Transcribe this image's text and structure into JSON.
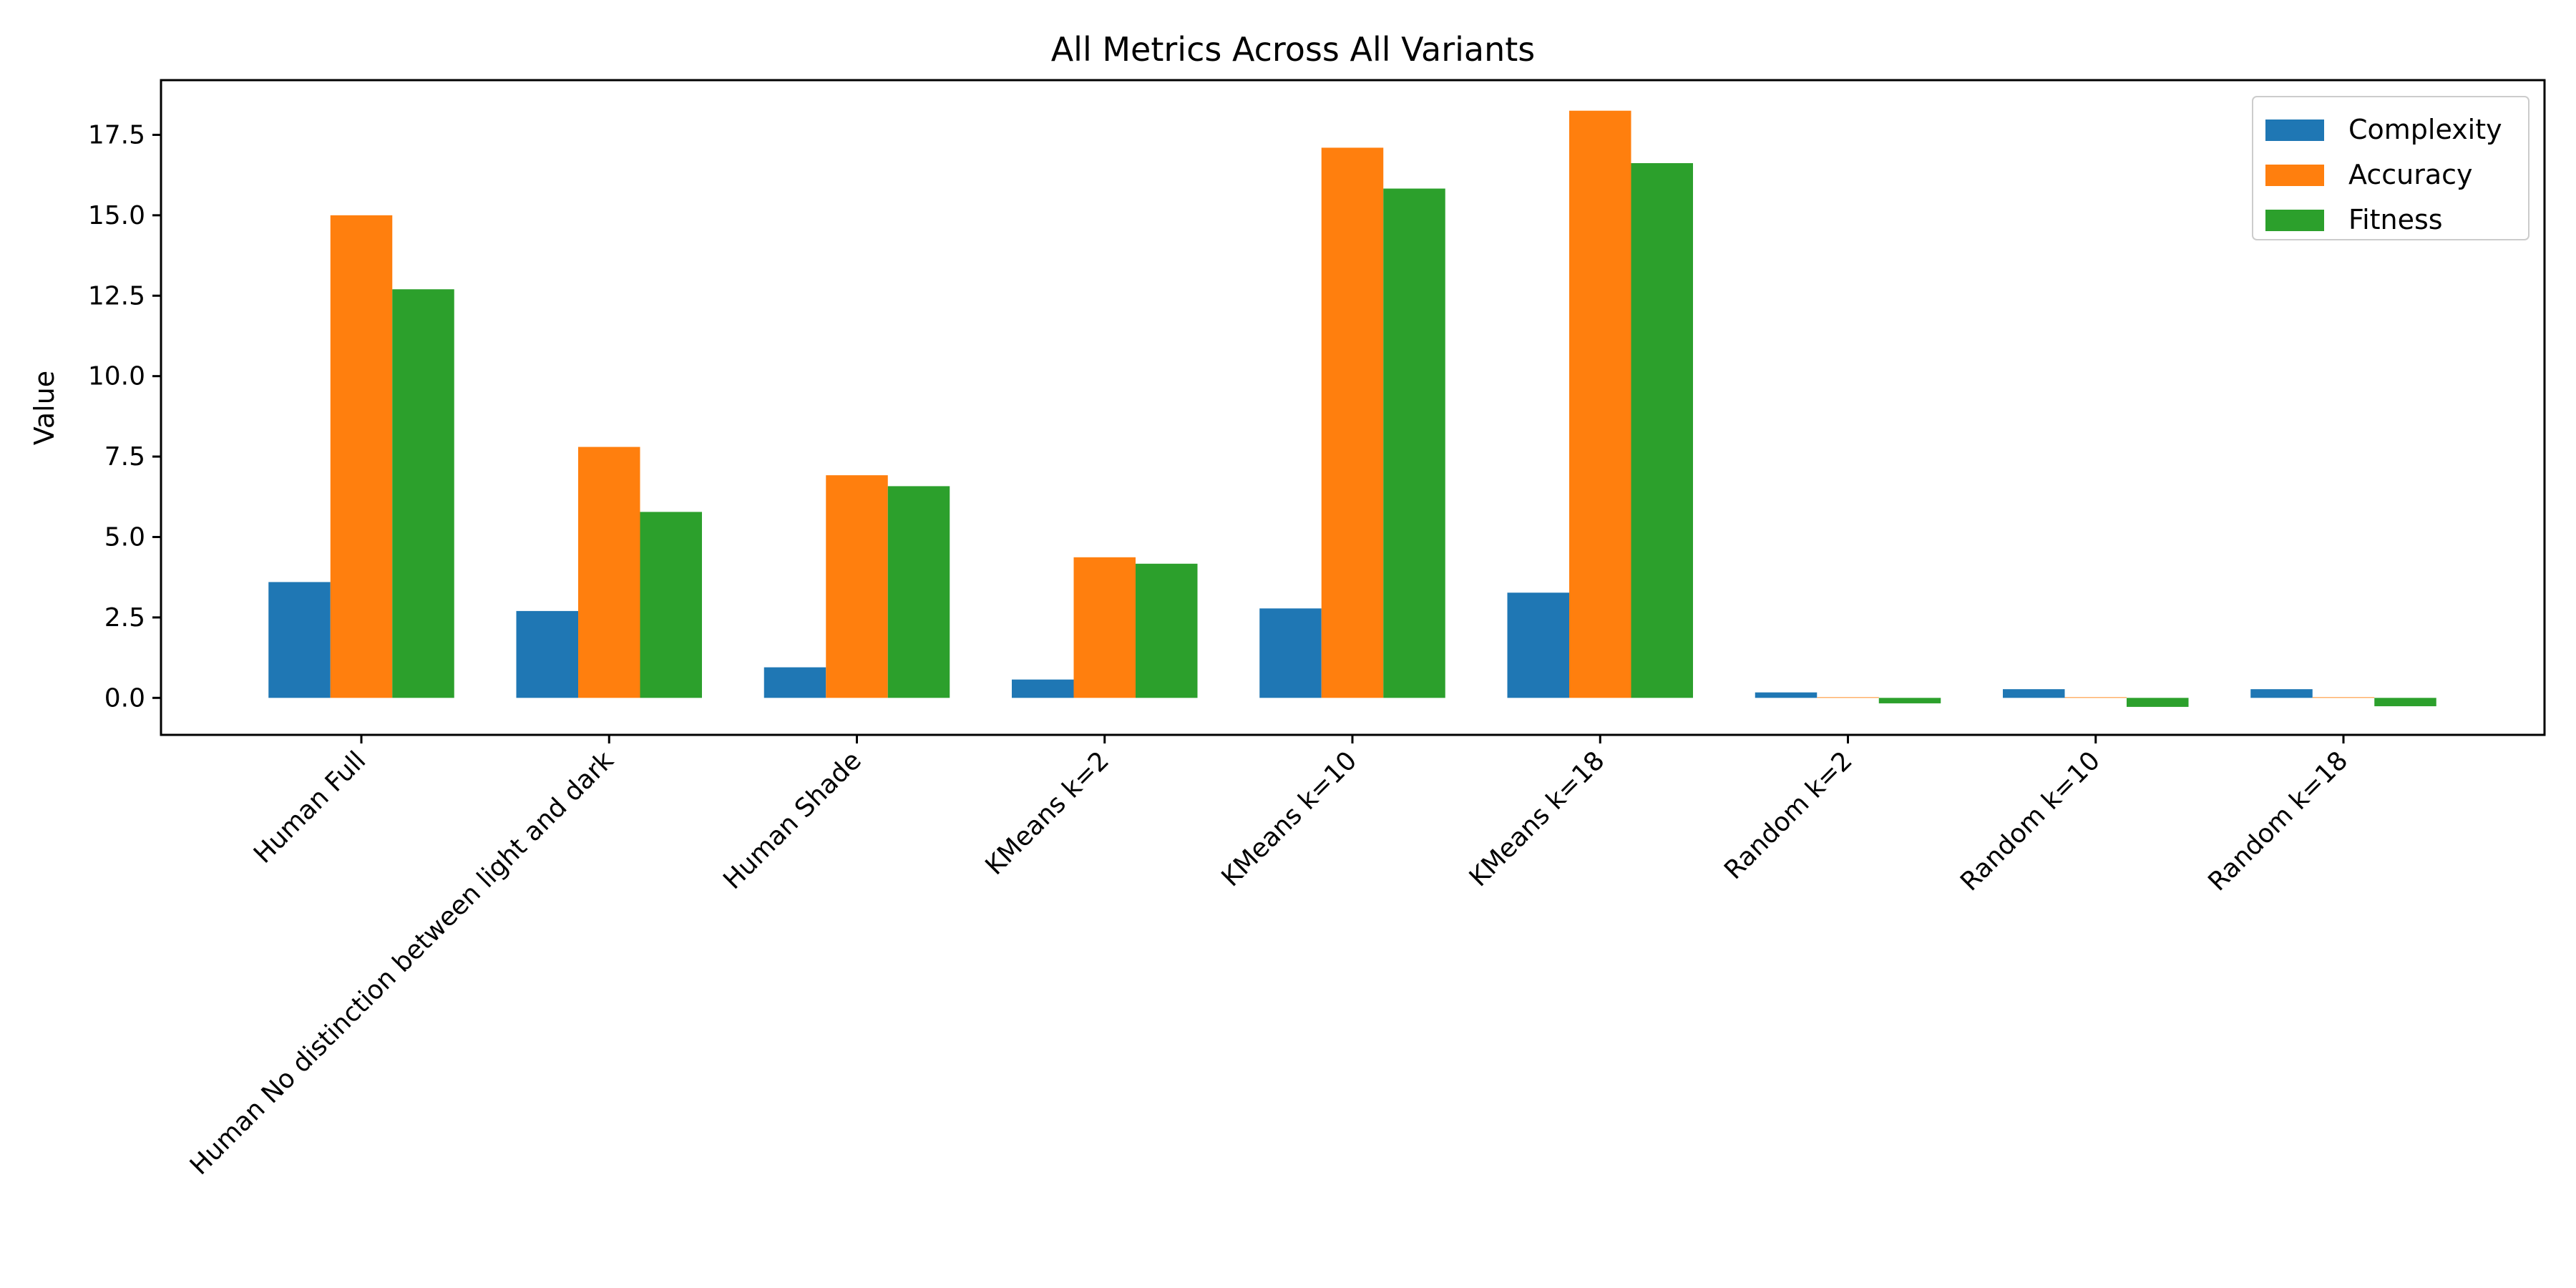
{
  "chart_data": {
    "type": "bar",
    "title": "All Metrics Across All Variants",
    "xlabel": "",
    "ylabel": "Value",
    "categories": [
      "Human Full",
      "Human No distinction between light and dark",
      "Human Shade",
      "KMeans k=2",
      "KMeans k=10",
      "KMeans k=18",
      "Random k=2",
      "Random k=10",
      "Random k=18"
    ],
    "series": [
      {
        "name": "Complexity",
        "color": "#1f77b4",
        "values": [
          3.6,
          2.7,
          0.95,
          0.57,
          2.78,
          3.27,
          0.17,
          0.27,
          0.27
        ]
      },
      {
        "name": "Accuracy",
        "color": "#ff7f0e",
        "values": [
          15.0,
          7.8,
          6.92,
          4.37,
          17.1,
          18.25,
          0.02,
          0.02,
          0.02
        ]
      },
      {
        "name": "Fitness",
        "color": "#2ca02c",
        "values": [
          12.7,
          5.78,
          6.58,
          4.17,
          15.83,
          16.62,
          -0.17,
          -0.28,
          -0.26
        ]
      }
    ],
    "ylim": [
      -1.15,
      19.2
    ],
    "yticks": [
      0.0,
      2.5,
      5.0,
      7.5,
      10.0,
      12.5,
      15.0,
      17.5
    ],
    "ytick_labels": [
      "0.0",
      "2.5",
      "5.0",
      "7.5",
      "10.0",
      "12.5",
      "15.0",
      "17.5"
    ],
    "grid": false,
    "legend_position": "top-right"
  }
}
